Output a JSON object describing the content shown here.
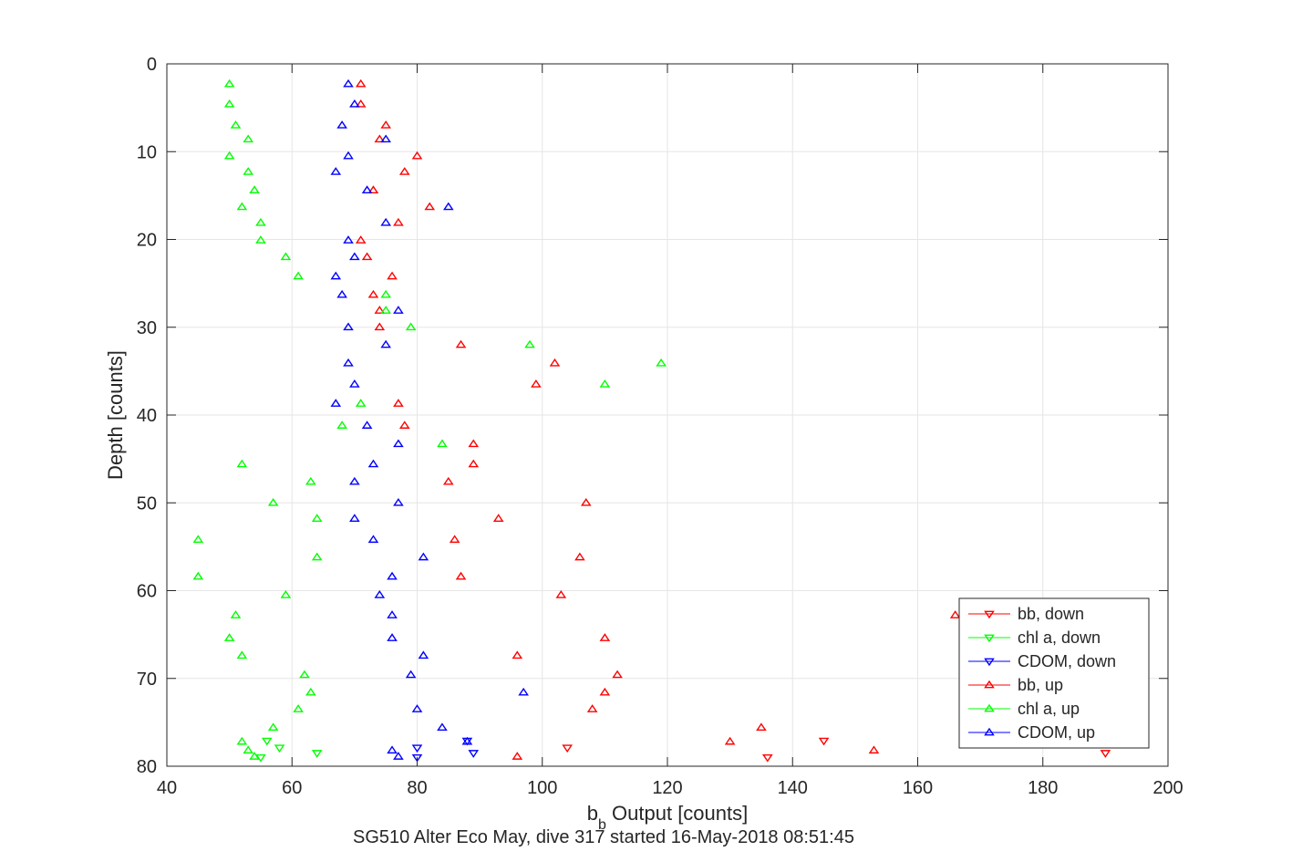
{
  "chart_data": {
    "type": "scatter",
    "xlabel_main": "b",
    "xlabel_sub": "b",
    "xlabel_rest": " Output [counts]",
    "ylabel": "Depth [counts]",
    "subtitle": "SG510 Alter Eco May, dive 317 started 16-May-2018 08:51:45",
    "xlim": [
      40,
      200
    ],
    "ylim": [
      0,
      80
    ],
    "y_reversed": true,
    "grid": true,
    "legend_position": "bottom-right",
    "xticks": [
      40,
      60,
      80,
      100,
      120,
      140,
      160,
      180,
      200
    ],
    "yticks": [
      0,
      10,
      20,
      30,
      40,
      50,
      60,
      70,
      80
    ],
    "series": [
      {
        "name": "bb, down",
        "color": "#ff0000",
        "marker": "triangle-down",
        "points": [
          [
            104,
            77.9
          ],
          [
            145,
            77.1
          ],
          [
            136,
            79.0
          ],
          [
            190,
            78.5
          ]
        ]
      },
      {
        "name": "chl a, down",
        "color": "#00ff00",
        "marker": "triangle-down",
        "points": [
          [
            56,
            77.1
          ],
          [
            58,
            77.9
          ],
          [
            64,
            78.5
          ],
          [
            55,
            79.0
          ]
        ]
      },
      {
        "name": "CDOM, down",
        "color": "#0000ff",
        "marker": "triangle-down",
        "points": [
          [
            88,
            77.1
          ],
          [
            80,
            77.9
          ],
          [
            89,
            78.5
          ],
          [
            80,
            79.0
          ]
        ]
      },
      {
        "name": "bb, up",
        "color": "#ff0000",
        "marker": "triangle-up",
        "points": [
          [
            71,
            2.3
          ],
          [
            71,
            4.6
          ],
          [
            75,
            7.0
          ],
          [
            74,
            8.6
          ],
          [
            80,
            10.5
          ],
          [
            78,
            12.3
          ],
          [
            73,
            14.4
          ],
          [
            82,
            16.3
          ],
          [
            77,
            18.1
          ],
          [
            71,
            20.1
          ],
          [
            72,
            22.0
          ],
          [
            76,
            24.2
          ],
          [
            73,
            26.3
          ],
          [
            74,
            28.1
          ],
          [
            74,
            30.0
          ],
          [
            87,
            32.0
          ],
          [
            102,
            34.1
          ],
          [
            99,
            36.5
          ],
          [
            77,
            38.7
          ],
          [
            78,
            41.2
          ],
          [
            89,
            43.3
          ],
          [
            89,
            45.6
          ],
          [
            85,
            47.6
          ],
          [
            107,
            50.0
          ],
          [
            93,
            51.8
          ],
          [
            86,
            54.2
          ],
          [
            106,
            56.2
          ],
          [
            87,
            58.4
          ],
          [
            103,
            60.5
          ],
          [
            166,
            62.8
          ],
          [
            110,
            65.4
          ],
          [
            96,
            67.4
          ],
          [
            112,
            69.6
          ],
          [
            110,
            71.6
          ],
          [
            108,
            73.5
          ],
          [
            135,
            75.6
          ],
          [
            130,
            77.2
          ],
          [
            153,
            78.2
          ],
          [
            96,
            78.9
          ]
        ]
      },
      {
        "name": "chl a, up",
        "color": "#00ff00",
        "marker": "triangle-up",
        "points": [
          [
            50,
            2.3
          ],
          [
            50,
            4.6
          ],
          [
            51,
            7.0
          ],
          [
            53,
            8.6
          ],
          [
            50,
            10.5
          ],
          [
            53,
            12.3
          ],
          [
            54,
            14.4
          ],
          [
            52,
            16.3
          ],
          [
            55,
            18.1
          ],
          [
            55,
            20.1
          ],
          [
            59,
            22.0
          ],
          [
            61,
            24.2
          ],
          [
            75,
            26.3
          ],
          [
            75,
            28.1
          ],
          [
            79,
            30.0
          ],
          [
            98,
            32.0
          ],
          [
            119,
            34.1
          ],
          [
            110,
            36.5
          ],
          [
            71,
            38.7
          ],
          [
            68,
            41.2
          ],
          [
            84,
            43.3
          ],
          [
            52,
            45.6
          ],
          [
            63,
            47.6
          ],
          [
            57,
            50.0
          ],
          [
            64,
            51.8
          ],
          [
            45,
            54.2
          ],
          [
            64,
            56.2
          ],
          [
            45,
            58.4
          ],
          [
            59,
            60.5
          ],
          [
            51,
            62.8
          ],
          [
            50,
            65.4
          ],
          [
            52,
            67.4
          ],
          [
            62,
            69.6
          ],
          [
            63,
            71.6
          ],
          [
            61,
            73.5
          ],
          [
            57,
            75.6
          ],
          [
            52,
            77.2
          ],
          [
            53,
            78.2
          ],
          [
            54,
            78.9
          ]
        ]
      },
      {
        "name": "CDOM, up",
        "color": "#0000ff",
        "marker": "triangle-up",
        "points": [
          [
            69,
            2.3
          ],
          [
            70,
            4.6
          ],
          [
            68,
            7.0
          ],
          [
            75,
            8.6
          ],
          [
            69,
            10.5
          ],
          [
            67,
            12.3
          ],
          [
            72,
            14.4
          ],
          [
            85,
            16.3
          ],
          [
            75,
            18.1
          ],
          [
            69,
            20.1
          ],
          [
            70,
            22.0
          ],
          [
            67,
            24.2
          ],
          [
            68,
            26.3
          ],
          [
            77,
            28.1
          ],
          [
            69,
            30.0
          ],
          [
            75,
            32.0
          ],
          [
            69,
            34.1
          ],
          [
            70,
            36.5
          ],
          [
            67,
            38.7
          ],
          [
            72,
            41.2
          ],
          [
            77,
            43.3
          ],
          [
            73,
            45.6
          ],
          [
            70,
            47.6
          ],
          [
            77,
            50.0
          ],
          [
            70,
            51.8
          ],
          [
            73,
            54.2
          ],
          [
            81,
            56.2
          ],
          [
            76,
            58.4
          ],
          [
            74,
            60.5
          ],
          [
            76,
            62.8
          ],
          [
            76,
            65.4
          ],
          [
            81,
            67.4
          ],
          [
            79,
            69.6
          ],
          [
            97,
            71.6
          ],
          [
            80,
            73.5
          ],
          [
            84,
            75.6
          ],
          [
            88,
            77.2
          ],
          [
            76,
            78.2
          ],
          [
            77,
            78.9
          ]
        ]
      }
    ]
  }
}
